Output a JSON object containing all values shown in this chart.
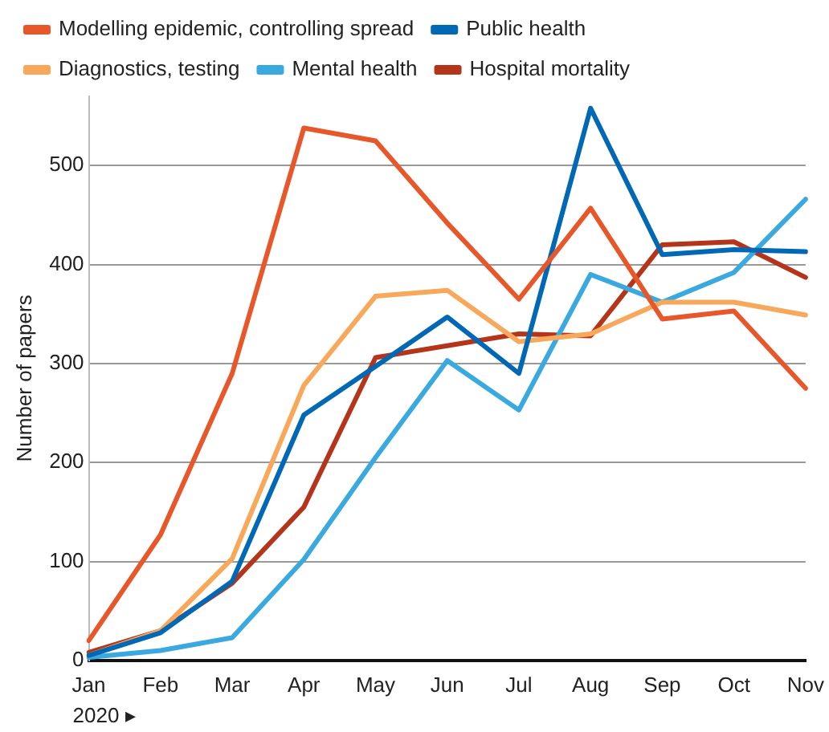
{
  "chart_data": {
    "type": "line",
    "ylabel": "Number of papers",
    "categories": [
      "Jan",
      "Feb",
      "Mar",
      "Apr",
      "May",
      "Jun",
      "Jul",
      "Aug",
      "Sep",
      "Oct",
      "Nov"
    ],
    "series": [
      {
        "name": "Modelling epidemic, controlling spread",
        "color": "#e8572a",
        "values": [
          20,
          127,
          290,
          538,
          525,
          442,
          365,
          457,
          345,
          353,
          275
        ]
      },
      {
        "name": "Public health",
        "color": "#0068b4",
        "values": [
          5,
          28,
          80,
          248,
          297,
          347,
          290,
          558,
          410,
          415,
          413
        ]
      },
      {
        "name": "Diagnostics, testing",
        "color": "#f7a85a",
        "values": [
          5,
          30,
          103,
          278,
          368,
          374,
          322,
          330,
          362,
          362,
          349
        ]
      },
      {
        "name": "Mental health",
        "color": "#3aa9e0",
        "values": [
          3,
          10,
          23,
          102,
          205,
          303,
          253,
          390,
          362,
          392,
          466
        ]
      },
      {
        "name": "Hospital mortality",
        "color": "#b5351b",
        "values": [
          8,
          30,
          78,
          155,
          306,
          318,
          330,
          328,
          420,
          423,
          387
        ]
      }
    ],
    "ylim": [
      0,
      570
    ],
    "yticks": [
      0,
      100,
      200,
      300,
      400,
      500
    ],
    "grid": "y",
    "legend": "top",
    "marker": "none",
    "line_style": "solid",
    "annotations": [
      "2020 ▸"
    ]
  }
}
